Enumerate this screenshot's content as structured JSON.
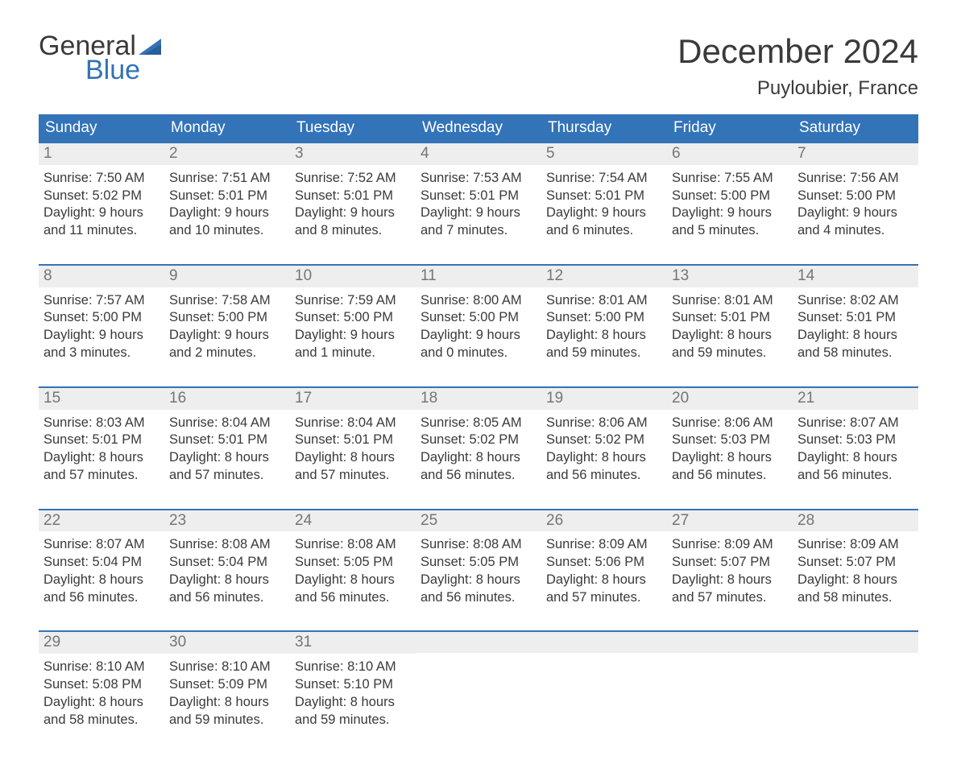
{
  "logo": {
    "text1": "General",
    "text2": "Blue",
    "accent": "#3373b8"
  },
  "title": "December 2024",
  "location": "Puyloubier, France",
  "colors": {
    "header_bg": "#3373b8",
    "header_text": "#ffffff",
    "daynum_bg": "#eeeeee",
    "daynum_text": "#757575",
    "body_text": "#3a3a3a",
    "week_border": "#3373b8",
    "page_bg": "#ffffff"
  },
  "typography": {
    "font_family": "Arial, Helvetica, sans-serif",
    "title_fontsize": 42,
    "location_fontsize": 24,
    "header_fontsize": 19,
    "daynum_fontsize": 19,
    "body_fontsize": 16.5
  },
  "day_labels": [
    "Sunday",
    "Monday",
    "Tuesday",
    "Wednesday",
    "Thursday",
    "Friday",
    "Saturday"
  ],
  "weeks": [
    [
      {
        "n": "1",
        "sunrise": "Sunrise: 7:50 AM",
        "sunset": "Sunset: 5:02 PM",
        "d1": "Daylight: 9 hours",
        "d2": "and 11 minutes."
      },
      {
        "n": "2",
        "sunrise": "Sunrise: 7:51 AM",
        "sunset": "Sunset: 5:01 PM",
        "d1": "Daylight: 9 hours",
        "d2": "and 10 minutes."
      },
      {
        "n": "3",
        "sunrise": "Sunrise: 7:52 AM",
        "sunset": "Sunset: 5:01 PM",
        "d1": "Daylight: 9 hours",
        "d2": "and 8 minutes."
      },
      {
        "n": "4",
        "sunrise": "Sunrise: 7:53 AM",
        "sunset": "Sunset: 5:01 PM",
        "d1": "Daylight: 9 hours",
        "d2": "and 7 minutes."
      },
      {
        "n": "5",
        "sunrise": "Sunrise: 7:54 AM",
        "sunset": "Sunset: 5:01 PM",
        "d1": "Daylight: 9 hours",
        "d2": "and 6 minutes."
      },
      {
        "n": "6",
        "sunrise": "Sunrise: 7:55 AM",
        "sunset": "Sunset: 5:00 PM",
        "d1": "Daylight: 9 hours",
        "d2": "and 5 minutes."
      },
      {
        "n": "7",
        "sunrise": "Sunrise: 7:56 AM",
        "sunset": "Sunset: 5:00 PM",
        "d1": "Daylight: 9 hours",
        "d2": "and 4 minutes."
      }
    ],
    [
      {
        "n": "8",
        "sunrise": "Sunrise: 7:57 AM",
        "sunset": "Sunset: 5:00 PM",
        "d1": "Daylight: 9 hours",
        "d2": "and 3 minutes."
      },
      {
        "n": "9",
        "sunrise": "Sunrise: 7:58 AM",
        "sunset": "Sunset: 5:00 PM",
        "d1": "Daylight: 9 hours",
        "d2": "and 2 minutes."
      },
      {
        "n": "10",
        "sunrise": "Sunrise: 7:59 AM",
        "sunset": "Sunset: 5:00 PM",
        "d1": "Daylight: 9 hours",
        "d2": "and 1 minute."
      },
      {
        "n": "11",
        "sunrise": "Sunrise: 8:00 AM",
        "sunset": "Sunset: 5:00 PM",
        "d1": "Daylight: 9 hours",
        "d2": "and 0 minutes."
      },
      {
        "n": "12",
        "sunrise": "Sunrise: 8:01 AM",
        "sunset": "Sunset: 5:00 PM",
        "d1": "Daylight: 8 hours",
        "d2": "and 59 minutes."
      },
      {
        "n": "13",
        "sunrise": "Sunrise: 8:01 AM",
        "sunset": "Sunset: 5:01 PM",
        "d1": "Daylight: 8 hours",
        "d2": "and 59 minutes."
      },
      {
        "n": "14",
        "sunrise": "Sunrise: 8:02 AM",
        "sunset": "Sunset: 5:01 PM",
        "d1": "Daylight: 8 hours",
        "d2": "and 58 minutes."
      }
    ],
    [
      {
        "n": "15",
        "sunrise": "Sunrise: 8:03 AM",
        "sunset": "Sunset: 5:01 PM",
        "d1": "Daylight: 8 hours",
        "d2": "and 57 minutes."
      },
      {
        "n": "16",
        "sunrise": "Sunrise: 8:04 AM",
        "sunset": "Sunset: 5:01 PM",
        "d1": "Daylight: 8 hours",
        "d2": "and 57 minutes."
      },
      {
        "n": "17",
        "sunrise": "Sunrise: 8:04 AM",
        "sunset": "Sunset: 5:01 PM",
        "d1": "Daylight: 8 hours",
        "d2": "and 57 minutes."
      },
      {
        "n": "18",
        "sunrise": "Sunrise: 8:05 AM",
        "sunset": "Sunset: 5:02 PM",
        "d1": "Daylight: 8 hours",
        "d2": "and 56 minutes."
      },
      {
        "n": "19",
        "sunrise": "Sunrise: 8:06 AM",
        "sunset": "Sunset: 5:02 PM",
        "d1": "Daylight: 8 hours",
        "d2": "and 56 minutes."
      },
      {
        "n": "20",
        "sunrise": "Sunrise: 8:06 AM",
        "sunset": "Sunset: 5:03 PM",
        "d1": "Daylight: 8 hours",
        "d2": "and 56 minutes."
      },
      {
        "n": "21",
        "sunrise": "Sunrise: 8:07 AM",
        "sunset": "Sunset: 5:03 PM",
        "d1": "Daylight: 8 hours",
        "d2": "and 56 minutes."
      }
    ],
    [
      {
        "n": "22",
        "sunrise": "Sunrise: 8:07 AM",
        "sunset": "Sunset: 5:04 PM",
        "d1": "Daylight: 8 hours",
        "d2": "and 56 minutes."
      },
      {
        "n": "23",
        "sunrise": "Sunrise: 8:08 AM",
        "sunset": "Sunset: 5:04 PM",
        "d1": "Daylight: 8 hours",
        "d2": "and 56 minutes."
      },
      {
        "n": "24",
        "sunrise": "Sunrise: 8:08 AM",
        "sunset": "Sunset: 5:05 PM",
        "d1": "Daylight: 8 hours",
        "d2": "and 56 minutes."
      },
      {
        "n": "25",
        "sunrise": "Sunrise: 8:08 AM",
        "sunset": "Sunset: 5:05 PM",
        "d1": "Daylight: 8 hours",
        "d2": "and 56 minutes."
      },
      {
        "n": "26",
        "sunrise": "Sunrise: 8:09 AM",
        "sunset": "Sunset: 5:06 PM",
        "d1": "Daylight: 8 hours",
        "d2": "and 57 minutes."
      },
      {
        "n": "27",
        "sunrise": "Sunrise: 8:09 AM",
        "sunset": "Sunset: 5:07 PM",
        "d1": "Daylight: 8 hours",
        "d2": "and 57 minutes."
      },
      {
        "n": "28",
        "sunrise": "Sunrise: 8:09 AM",
        "sunset": "Sunset: 5:07 PM",
        "d1": "Daylight: 8 hours",
        "d2": "and 58 minutes."
      }
    ],
    [
      {
        "n": "29",
        "sunrise": "Sunrise: 8:10 AM",
        "sunset": "Sunset: 5:08 PM",
        "d1": "Daylight: 8 hours",
        "d2": "and 58 minutes."
      },
      {
        "n": "30",
        "sunrise": "Sunrise: 8:10 AM",
        "sunset": "Sunset: 5:09 PM",
        "d1": "Daylight: 8 hours",
        "d2": "and 59 minutes."
      },
      {
        "n": "31",
        "sunrise": "Sunrise: 8:10 AM",
        "sunset": "Sunset: 5:10 PM",
        "d1": "Daylight: 8 hours",
        "d2": "and 59 minutes."
      },
      {
        "n": "",
        "sunrise": "",
        "sunset": "",
        "d1": "",
        "d2": ""
      },
      {
        "n": "",
        "sunrise": "",
        "sunset": "",
        "d1": "",
        "d2": ""
      },
      {
        "n": "",
        "sunrise": "",
        "sunset": "",
        "d1": "",
        "d2": ""
      },
      {
        "n": "",
        "sunrise": "",
        "sunset": "",
        "d1": "",
        "d2": ""
      }
    ]
  ]
}
